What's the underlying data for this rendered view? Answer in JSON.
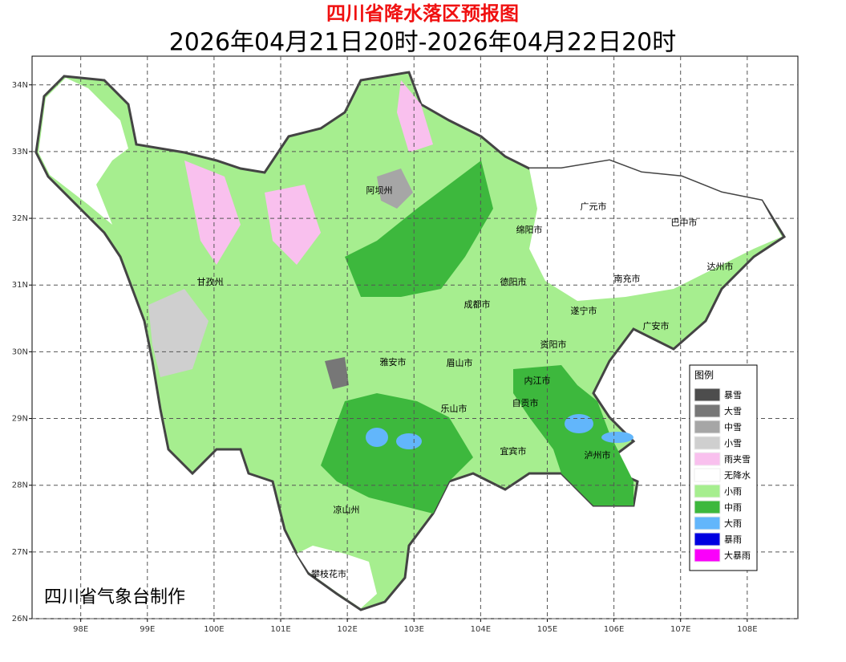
{
  "header": {
    "title": "四川省降水落区预报图",
    "subtitle": "2026年04月21日20时-2026年04月22日20时"
  },
  "map": {
    "lon_range": [
      97.27,
      108.76
    ],
    "lat_range": [
      26,
      34.43
    ],
    "grid": true,
    "lon_ticks": [
      {
        "value": 98,
        "label": "98E"
      },
      {
        "value": 99,
        "label": "99E"
      },
      {
        "value": 100,
        "label": "100E"
      },
      {
        "value": 101,
        "label": "101E"
      },
      {
        "value": 102,
        "label": "102E"
      },
      {
        "value": 103,
        "label": "103E"
      },
      {
        "value": 104,
        "label": "104E"
      },
      {
        "value": 105,
        "label": "105E"
      },
      {
        "value": 106,
        "label": "106E"
      },
      {
        "value": 107,
        "label": "107E"
      },
      {
        "value": 108,
        "label": "108E"
      }
    ],
    "lat_ticks": [
      {
        "value": 26,
        "label": "26N"
      },
      {
        "value": 27,
        "label": "27N"
      },
      {
        "value": 28,
        "label": "28N"
      },
      {
        "value": 29,
        "label": "29N"
      },
      {
        "value": 30,
        "label": "30N"
      },
      {
        "value": 31,
        "label": "31N"
      },
      {
        "value": 32,
        "label": "32N"
      },
      {
        "value": 33,
        "label": "33N"
      },
      {
        "value": 34,
        "label": "34N"
      }
    ],
    "cities": [
      "阿坝州",
      "广元市",
      "巴中市",
      "绵阳市",
      "达州市",
      "甘孜州",
      "德阳市",
      "南充市",
      "成都市",
      "遂宁市",
      "广安市",
      "资阳市",
      "雅安市",
      "眉山市",
      "内江市",
      "乐山市",
      "自贡市",
      "宜宾市",
      "泸州市",
      "凉山州",
      "攀枝花市"
    ]
  },
  "legend": {
    "title": "图例",
    "items": [
      {
        "label": "暴雪",
        "color": "#4d4d4d"
      },
      {
        "label": "大雪",
        "color": "#777777"
      },
      {
        "label": "中雪",
        "color": "#a6a6a6"
      },
      {
        "label": "小雪",
        "color": "#cfcfcf"
      },
      {
        "label": "雨夹雪",
        "color": "#f9c0ee"
      },
      {
        "label": "无降水",
        "color": "#ffffff"
      },
      {
        "label": "小雨",
        "color": "#a6ee8f"
      },
      {
        "label": "中雨",
        "color": "#3db83d"
      },
      {
        "label": "大雨",
        "color": "#62b6fb"
      },
      {
        "label": "暴雨",
        "color": "#0000e0"
      },
      {
        "label": "大暴雨",
        "color": "#fa00fa"
      }
    ]
  },
  "credit": "四川省气象台制作"
}
